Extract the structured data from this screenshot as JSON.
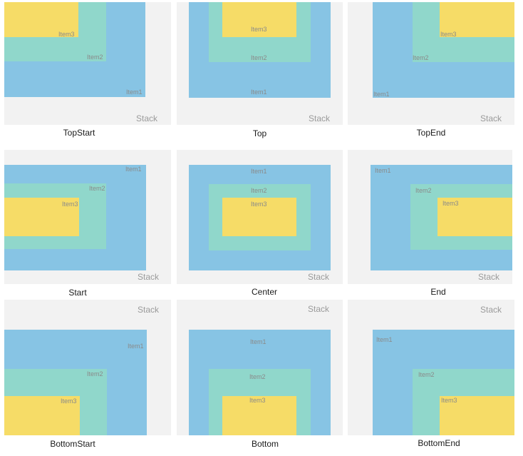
{
  "colors": {
    "stack": "#f2f2f2",
    "item1": "#87c4e4",
    "item2": "#90d7cb",
    "item3": "#f6dc67"
  },
  "stack_label": "Stack",
  "item_labels": [
    "Item1",
    "Item2",
    "Item3"
  ],
  "panels": [
    {
      "caption": "TopStart"
    },
    {
      "caption": "Top"
    },
    {
      "caption": "TopEnd"
    },
    {
      "caption": "Start"
    },
    {
      "caption": "Center"
    },
    {
      "caption": "End"
    },
    {
      "caption": "BottomStart"
    },
    {
      "caption": "Bottom"
    },
    {
      "caption": "BottomEnd"
    }
  ]
}
